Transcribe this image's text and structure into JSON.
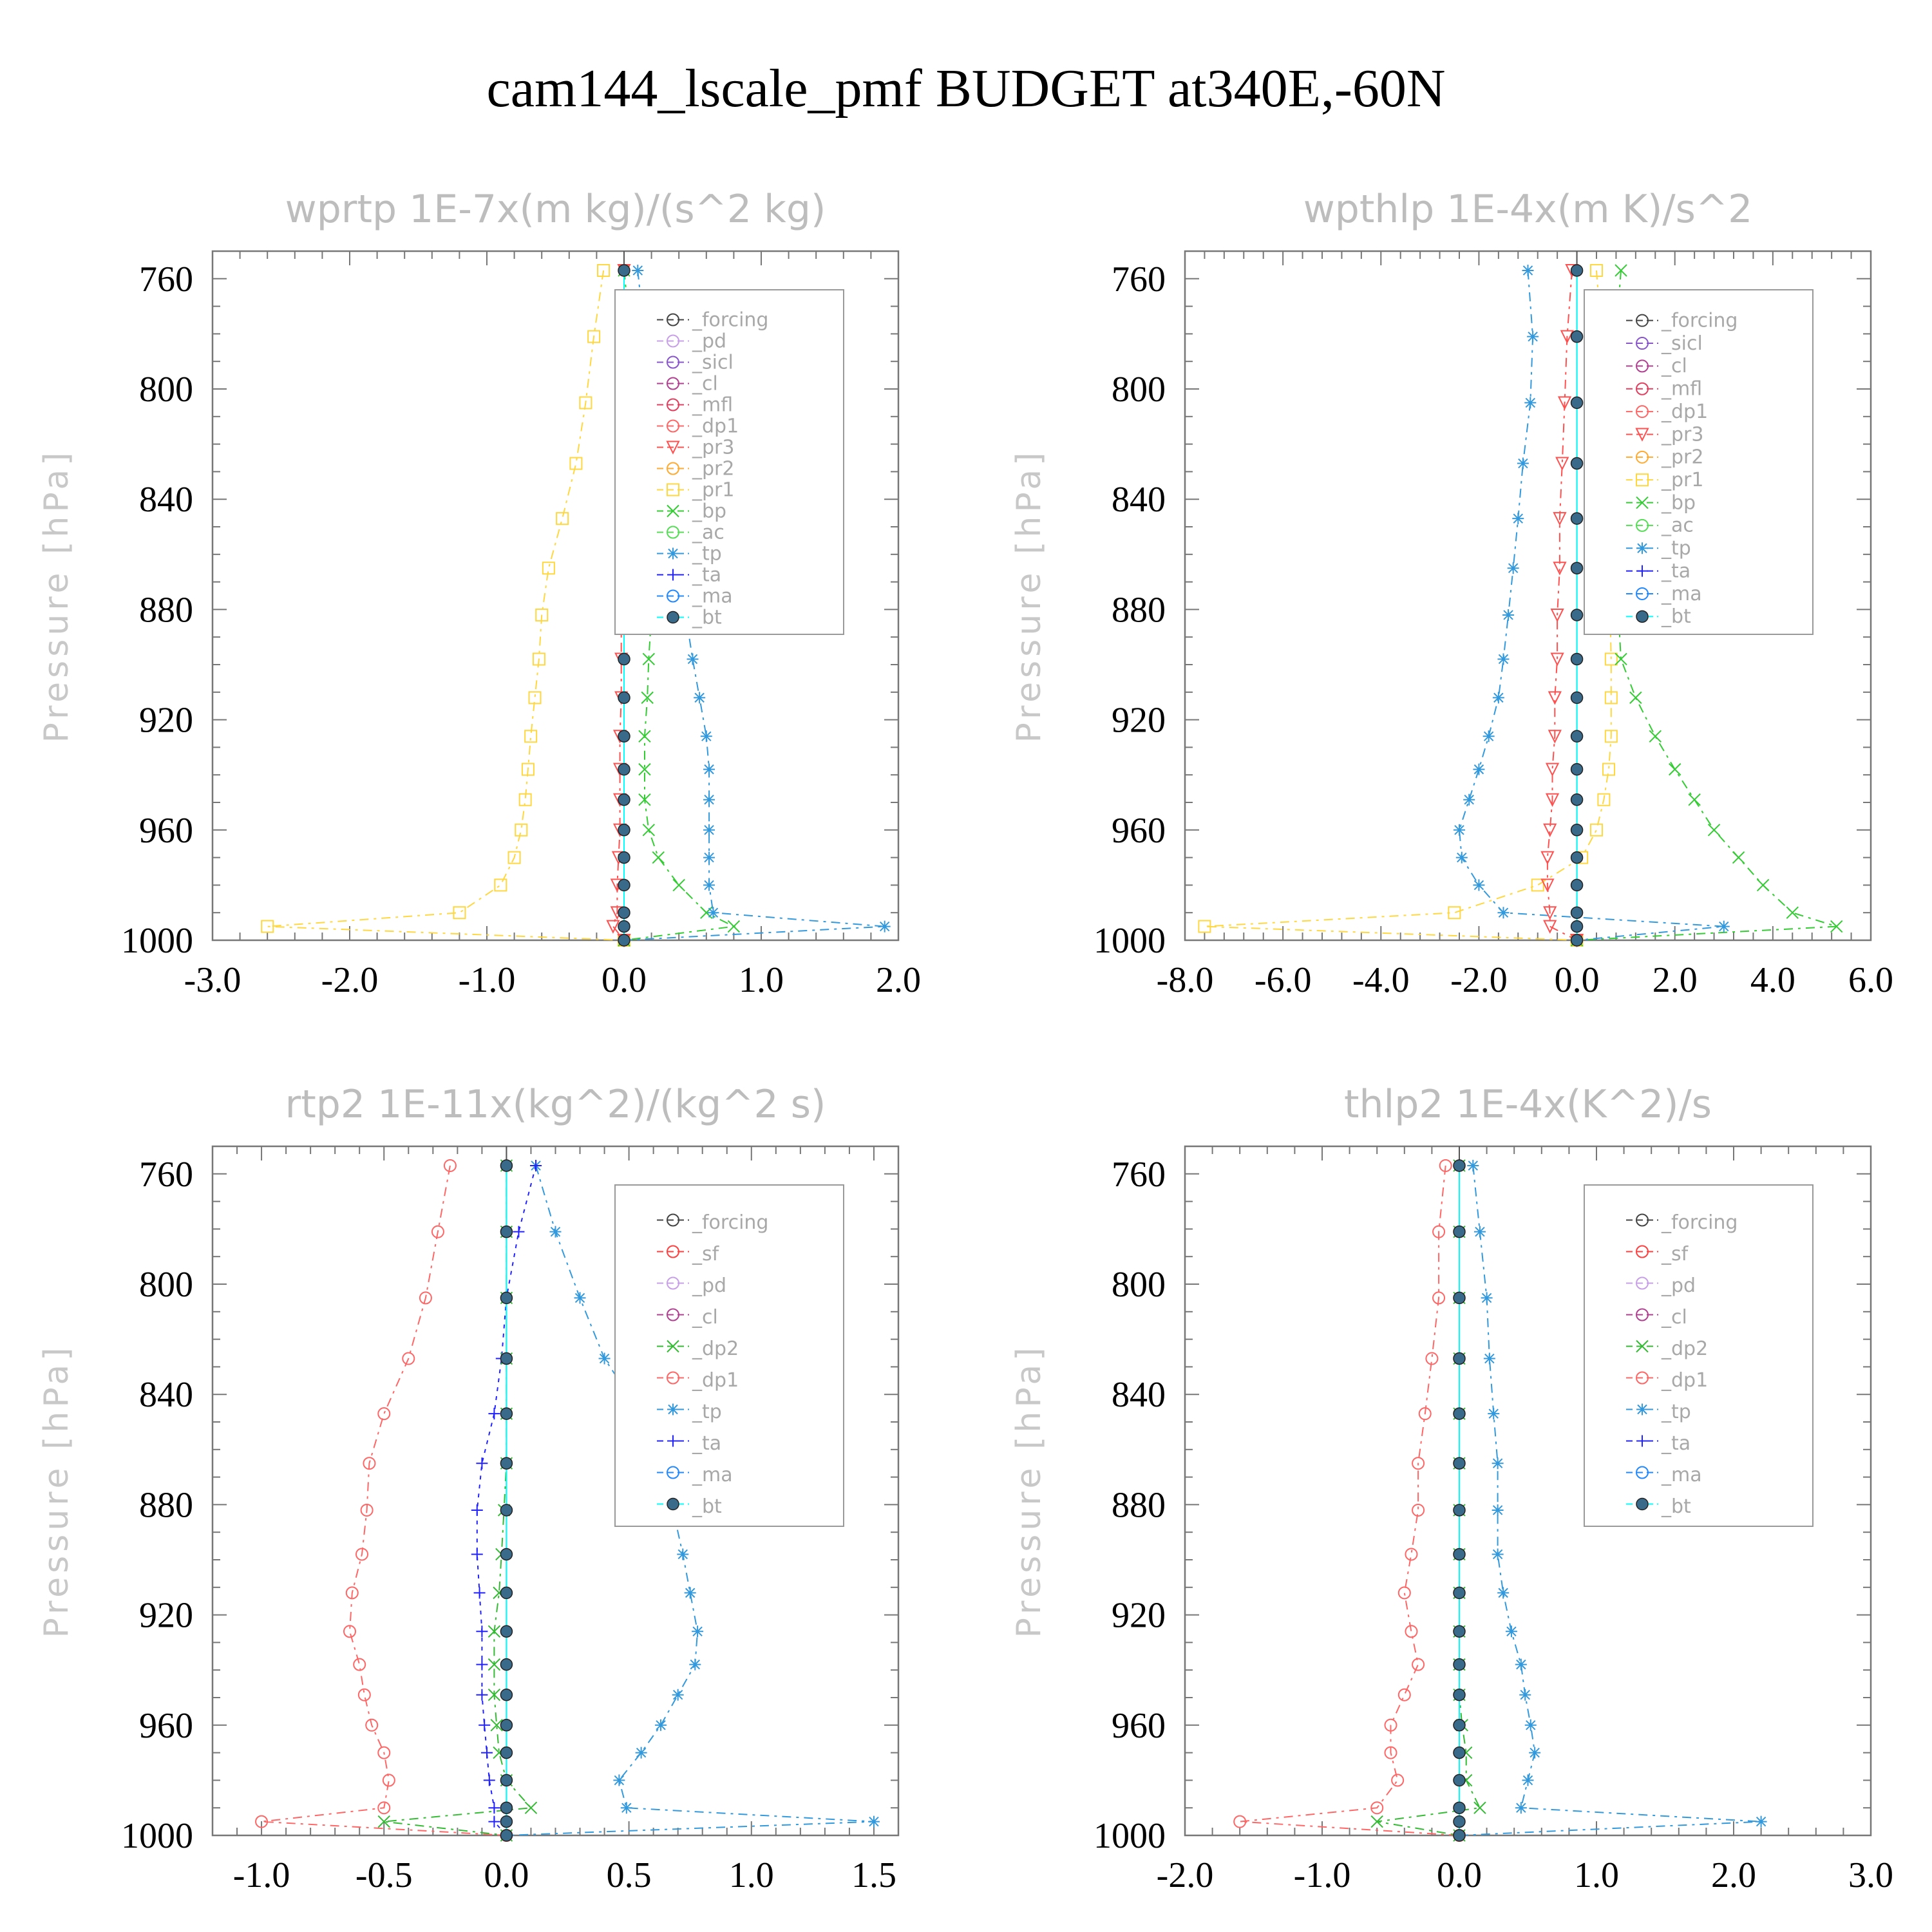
{
  "title": "cam144_lscale_pmf  BUDGET at340E,-60N",
  "ylabel": "Pressure [hPa]",
  "colors": {
    "_forcing": "#444444",
    "_pd": "#c8a0e8",
    "_sicl": "#8855cc",
    "_cl": "#b04090",
    "_mfl": "#e04060",
    "_dp1": "#ff6666",
    "_pr3": "#ff5050",
    "_pr2": "#ffaa30",
    "_pr1": "#ffd740",
    "_bp": "#33cc33",
    "_ac": "#55dd55",
    "_tp": "#3399dd",
    "_ta": "#2222ff",
    "_ma": "#2288ff",
    "_bt": "#00ffff",
    "_sf": "#ff4040",
    "_dp2": "#33bb33"
  },
  "chart_data": [
    {
      "type": "line",
      "title": "wprtp  1E-7x(m kg)/(s^2 kg)",
      "ylabel": "Pressure [hPa]",
      "xlim": [
        -3.0,
        2.0
      ],
      "ylim": [
        1000,
        750
      ],
      "xticks": [
        "-3.0",
        "-2.0",
        "-1.0",
        "0.0",
        "1.0",
        "2.0"
      ],
      "xtick_values": [
        -3,
        -2,
        -1,
        0,
        1,
        2
      ],
      "yticks": [
        "760",
        "800",
        "840",
        "880",
        "920",
        "960",
        "1000"
      ],
      "ytick_values": [
        760,
        800,
        840,
        880,
        920,
        960,
        1000
      ],
      "legend": [
        "_forcing",
        "_pd",
        "_sicl",
        "_cl",
        "_mfl",
        "_dp1",
        "_pr3",
        "_pr2",
        "_pr1",
        "_bp",
        "_ac",
        "_tp",
        "_ta",
        "_ma",
        "_bt"
      ],
      "y": [
        757,
        781,
        805,
        827,
        847,
        865,
        882,
        898,
        912,
        926,
        938,
        949,
        960,
        970,
        980,
        990,
        995,
        1000
      ],
      "series": [
        {
          "name": "_pr1",
          "values": [
            -0.15,
            -0.22,
            -0.28,
            -0.35,
            -0.45,
            -0.55,
            -0.6,
            -0.62,
            -0.65,
            -0.68,
            -0.7,
            -0.72,
            -0.75,
            -0.8,
            -0.9,
            -1.2,
            -2.6,
            0.0
          ]
        },
        {
          "name": "_bp",
          "values": [
            0.0,
            0.05,
            0.08,
            0.1,
            0.15,
            0.18,
            0.2,
            0.18,
            0.17,
            0.15,
            0.15,
            0.15,
            0.18,
            0.25,
            0.4,
            0.6,
            0.8,
            0.0
          ]
        },
        {
          "name": "_tp",
          "values": [
            0.1,
            0.15,
            0.2,
            0.25,
            0.3,
            0.38,
            0.45,
            0.5,
            0.55,
            0.6,
            0.62,
            0.62,
            0.62,
            0.62,
            0.62,
            0.65,
            1.9,
            0.0
          ]
        },
        {
          "name": "_pr3",
          "values": [
            0.0,
            0.0,
            0.0,
            -0.01,
            -0.01,
            -0.02,
            -0.02,
            -0.02,
            -0.02,
            -0.03,
            -0.03,
            -0.03,
            -0.03,
            -0.04,
            -0.05,
            -0.05,
            -0.08,
            0.0
          ]
        },
        {
          "name": "_bt",
          "values": [
            0,
            0,
            0,
            0,
            0,
            0,
            0,
            0,
            0,
            0,
            0,
            0,
            0,
            0,
            0,
            0,
            0,
            0
          ]
        }
      ]
    },
    {
      "type": "line",
      "title": "wpthlp  1E-4x(m K)/s^2",
      "ylabel": "Pressure [hPa]",
      "xlim": [
        -8.0,
        6.0
      ],
      "ylim": [
        1000,
        750
      ],
      "xticks": [
        "-8.0",
        "-6.0",
        "-4.0",
        "-2.0",
        "0.0",
        "2.0",
        "4.0",
        "6.0"
      ],
      "xtick_values": [
        -8,
        -6,
        -4,
        -2,
        0,
        2,
        4,
        6
      ],
      "yticks": [
        "760",
        "800",
        "840",
        "880",
        "920",
        "960",
        "1000"
      ],
      "ytick_values": [
        760,
        800,
        840,
        880,
        920,
        960,
        1000
      ],
      "legend": [
        "_forcing",
        "_sicl",
        "_cl",
        "_mfl",
        "_dp1",
        "_pr3",
        "_pr2",
        "_pr1",
        "_bp",
        "_ac",
        "_tp",
        "_ta",
        "_ma",
        "_bt"
      ],
      "y": [
        757,
        781,
        805,
        827,
        847,
        865,
        882,
        898,
        912,
        926,
        938,
        949,
        960,
        970,
        980,
        990,
        995,
        1000
      ],
      "series": [
        {
          "name": "_pr1",
          "values": [
            0.4,
            0.5,
            0.55,
            0.6,
            0.65,
            0.65,
            0.68,
            0.7,
            0.7,
            0.7,
            0.65,
            0.55,
            0.4,
            0.1,
            -0.8,
            -2.5,
            -7.6,
            0.0
          ]
        },
        {
          "name": "_bp",
          "values": [
            0.9,
            0.8,
            0.75,
            0.75,
            0.8,
            0.85,
            0.85,
            0.9,
            1.2,
            1.6,
            2.0,
            2.4,
            2.8,
            3.3,
            3.8,
            4.4,
            5.3,
            0.0
          ]
        },
        {
          "name": "_tp",
          "values": [
            -1.0,
            -0.9,
            -0.95,
            -1.1,
            -1.2,
            -1.3,
            -1.4,
            -1.5,
            -1.6,
            -1.8,
            -2.0,
            -2.2,
            -2.4,
            -2.35,
            -2.0,
            -1.5,
            3.0,
            0.0
          ]
        },
        {
          "name": "_pr3",
          "values": [
            -0.1,
            -0.2,
            -0.25,
            -0.3,
            -0.35,
            -0.35,
            -0.4,
            -0.4,
            -0.45,
            -0.45,
            -0.5,
            -0.5,
            -0.55,
            -0.6,
            -0.6,
            -0.55,
            -0.55,
            0.0
          ]
        },
        {
          "name": "_bt",
          "values": [
            0,
            0,
            0,
            0,
            0,
            0,
            0,
            0,
            0,
            0,
            0,
            0,
            0,
            0,
            0,
            0,
            0,
            0
          ]
        }
      ]
    },
    {
      "type": "line",
      "title": "rtp2  1E-11x(kg^2)/(kg^2 s)",
      "ylabel": "Pressure [hPa]",
      "xlim": [
        -1.2,
        1.6
      ],
      "ylim": [
        1000,
        750
      ],
      "xticks": [
        "-1.0",
        "-0.5",
        "0.0",
        "0.5",
        "1.0",
        "1.5"
      ],
      "xtick_values": [
        -1,
        -0.5,
        0,
        0.5,
        1,
        1.5
      ],
      "yticks": [
        "760",
        "800",
        "840",
        "880",
        "920",
        "960",
        "1000"
      ],
      "ytick_values": [
        760,
        800,
        840,
        880,
        920,
        960,
        1000
      ],
      "legend": [
        "_forcing",
        "_sf",
        "_pd",
        "_cl",
        "_dp2",
        "_dp1",
        "_tp",
        "_ta",
        "_ma",
        "_bt"
      ],
      "y": [
        757,
        781,
        805,
        827,
        847,
        865,
        882,
        898,
        912,
        926,
        938,
        949,
        960,
        970,
        980,
        990,
        995,
        1000
      ],
      "series": [
        {
          "name": "_dp1",
          "values": [
            -0.23,
            -0.28,
            -0.33,
            -0.4,
            -0.5,
            -0.56,
            -0.57,
            -0.59,
            -0.63,
            -0.64,
            -0.6,
            -0.58,
            -0.55,
            -0.5,
            -0.48,
            -0.5,
            -1.0,
            0.0
          ]
        },
        {
          "name": "_tp",
          "values": [
            0.12,
            0.2,
            0.3,
            0.4,
            0.55,
            0.65,
            0.68,
            0.72,
            0.75,
            0.78,
            0.77,
            0.7,
            0.63,
            0.55,
            0.46,
            0.49,
            1.5,
            0.0
          ]
        },
        {
          "name": "_ta",
          "values": [
            0.12,
            0.05,
            0.0,
            -0.02,
            -0.05,
            -0.1,
            -0.12,
            -0.12,
            -0.11,
            -0.1,
            -0.1,
            -0.1,
            -0.09,
            -0.08,
            -0.07,
            -0.05,
            -0.05,
            0.0
          ]
        },
        {
          "name": "_dp2",
          "values": [
            0.0,
            0.0,
            0.0,
            0.0,
            0.0,
            0.0,
            -0.01,
            -0.02,
            -0.03,
            -0.05,
            -0.05,
            -0.05,
            -0.04,
            -0.03,
            0.0,
            0.1,
            -0.5,
            0.0
          ]
        },
        {
          "name": "_bt",
          "values": [
            0,
            0,
            0,
            0,
            0,
            0,
            0,
            0,
            0,
            0,
            0,
            0,
            0,
            0,
            0,
            0,
            0,
            0
          ]
        }
      ]
    },
    {
      "type": "line",
      "title": "thlp2  1E-4x(K^2)/s",
      "ylabel": "Pressure [hPa]",
      "xlim": [
        -2.0,
        3.0
      ],
      "ylim": [
        1000,
        750
      ],
      "xticks": [
        "-2.0",
        "-1.0",
        "0.0",
        "1.0",
        "2.0",
        "3.0"
      ],
      "xtick_values": [
        -2,
        -1,
        0,
        1,
        2,
        3
      ],
      "yticks": [
        "760",
        "800",
        "840",
        "880",
        "920",
        "960",
        "1000"
      ],
      "ytick_values": [
        760,
        800,
        840,
        880,
        920,
        960,
        1000
      ],
      "legend": [
        "_forcing",
        "_sf",
        "_pd",
        "_cl",
        "_dp2",
        "_dp1",
        "_tp",
        "_ta",
        "_ma",
        "_bt"
      ],
      "y": [
        757,
        781,
        805,
        827,
        847,
        865,
        882,
        898,
        912,
        926,
        938,
        949,
        960,
        970,
        980,
        990,
        995,
        1000
      ],
      "series": [
        {
          "name": "_dp1",
          "values": [
            -0.1,
            -0.15,
            -0.15,
            -0.2,
            -0.25,
            -0.3,
            -0.3,
            -0.35,
            -0.4,
            -0.35,
            -0.3,
            -0.4,
            -0.5,
            -0.5,
            -0.45,
            -0.6,
            -1.6,
            0.0
          ]
        },
        {
          "name": "_tp",
          "values": [
            0.1,
            0.15,
            0.2,
            0.22,
            0.25,
            0.28,
            0.28,
            0.28,
            0.32,
            0.38,
            0.45,
            0.48,
            0.52,
            0.55,
            0.5,
            0.45,
            2.2,
            0.0
          ]
        },
        {
          "name": "_dp2",
          "values": [
            0.0,
            0.0,
            0.0,
            0.0,
            0.0,
            0.0,
            0.0,
            0.0,
            0.0,
            0.0,
            0.0,
            0.0,
            0.02,
            0.05,
            0.05,
            0.15,
            -0.6,
            0.0
          ]
        },
        {
          "name": "_bt",
          "values": [
            0,
            0,
            0,
            0,
            0,
            0,
            0,
            0,
            0,
            0,
            0,
            0,
            0,
            0,
            0,
            0,
            0,
            0
          ]
        }
      ]
    }
  ]
}
